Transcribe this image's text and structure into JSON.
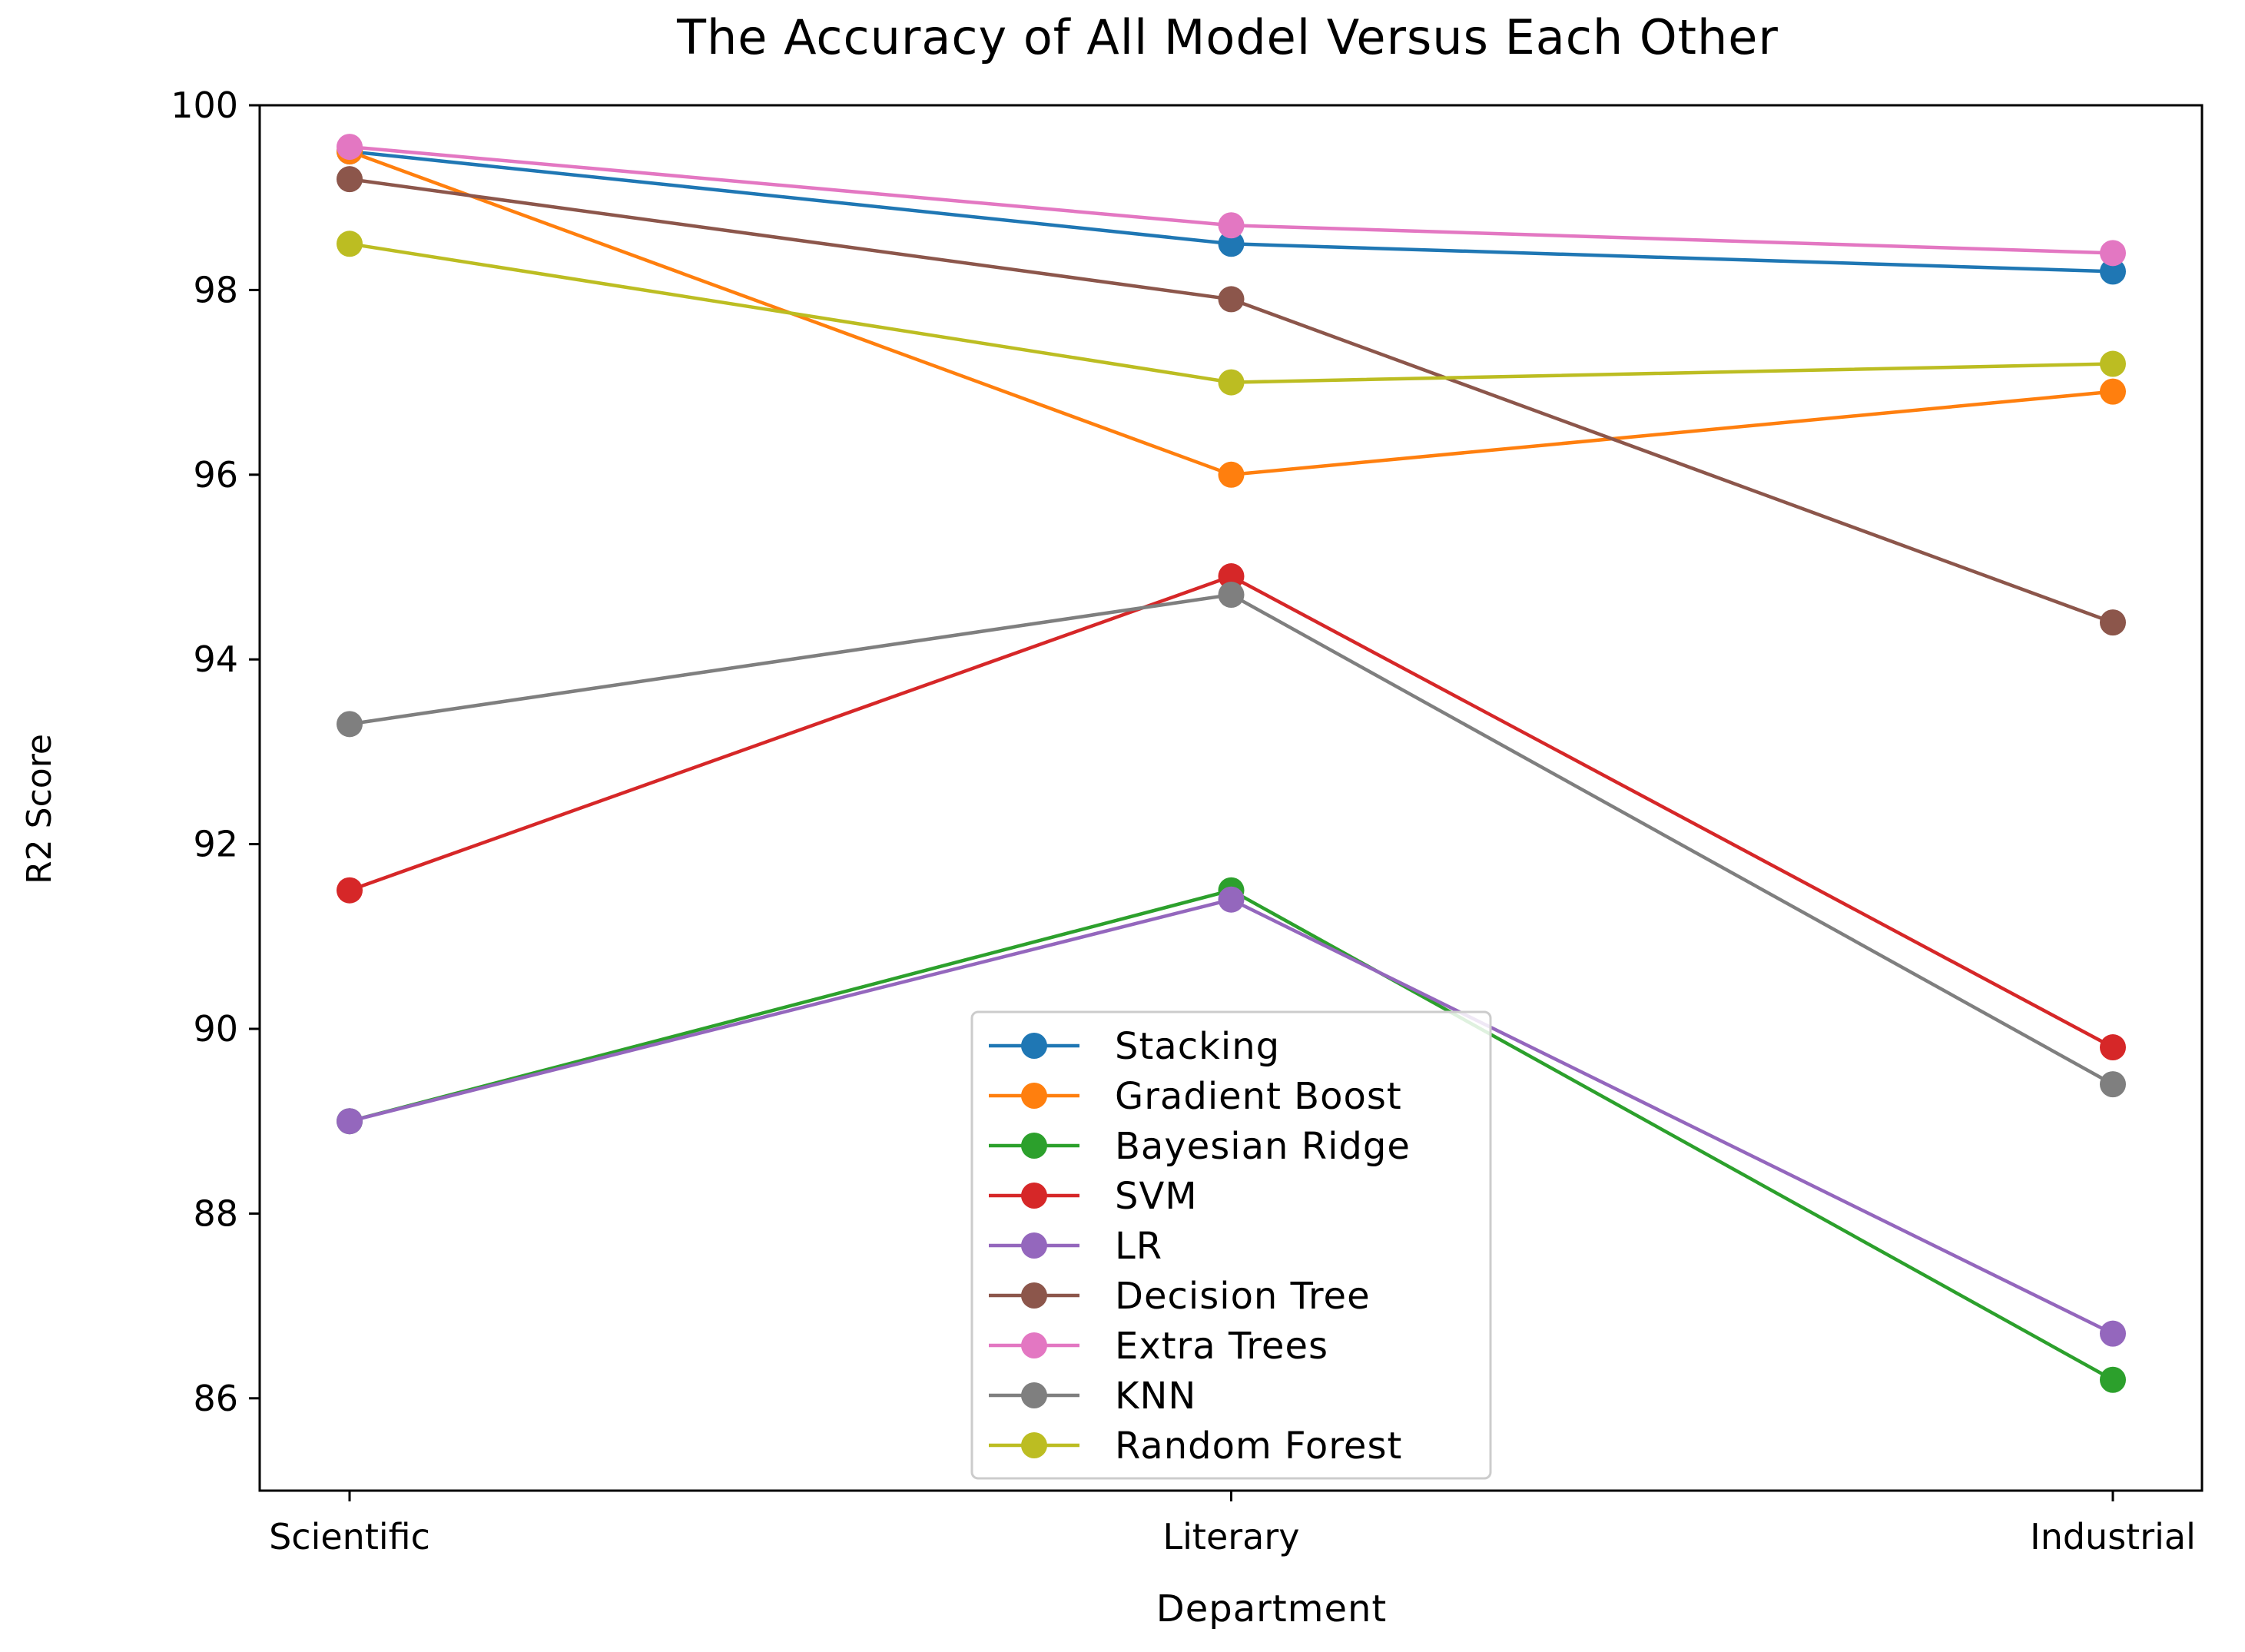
{
  "chart_data": {
    "type": "line",
    "title": "The Accuracy of All Model Versus Each Other",
    "xlabel": "Department",
    "ylabel": "R2 Score",
    "categories": [
      "Scientific",
      "Literary",
      "Industrial"
    ],
    "ylim": [
      85,
      100
    ],
    "yticks": [
      86,
      88,
      90,
      92,
      94,
      96,
      98,
      100
    ],
    "grid": false,
    "legend_position": "bottom-center",
    "series": [
      {
        "name": "Stacking",
        "color": "#1f77b4",
        "values": [
          99.5,
          98.5,
          98.2
        ]
      },
      {
        "name": "Gradient Boost",
        "color": "#ff7f0e",
        "values": [
          99.5,
          96.0,
          96.9
        ]
      },
      {
        "name": "Bayesian Ridge",
        "color": "#2ca02c",
        "values": [
          89.0,
          91.5,
          86.2
        ]
      },
      {
        "name": "SVM",
        "color": "#d62728",
        "values": [
          91.5,
          94.9,
          89.8
        ]
      },
      {
        "name": "LR",
        "color": "#9467bd",
        "values": [
          89.0,
          91.4,
          86.7
        ]
      },
      {
        "name": "Decision Tree",
        "color": "#8c564b",
        "values": [
          99.2,
          97.9,
          94.4
        ]
      },
      {
        "name": "Extra Trees",
        "color": "#e377c2",
        "values": [
          99.55,
          98.7,
          98.4
        ]
      },
      {
        "name": "KNN",
        "color": "#7f7f7f",
        "values": [
          93.3,
          94.7,
          89.4
        ]
      },
      {
        "name": "Random Forest",
        "color": "#bcbd22",
        "values": [
          98.5,
          97.0,
          97.2
        ]
      }
    ]
  }
}
